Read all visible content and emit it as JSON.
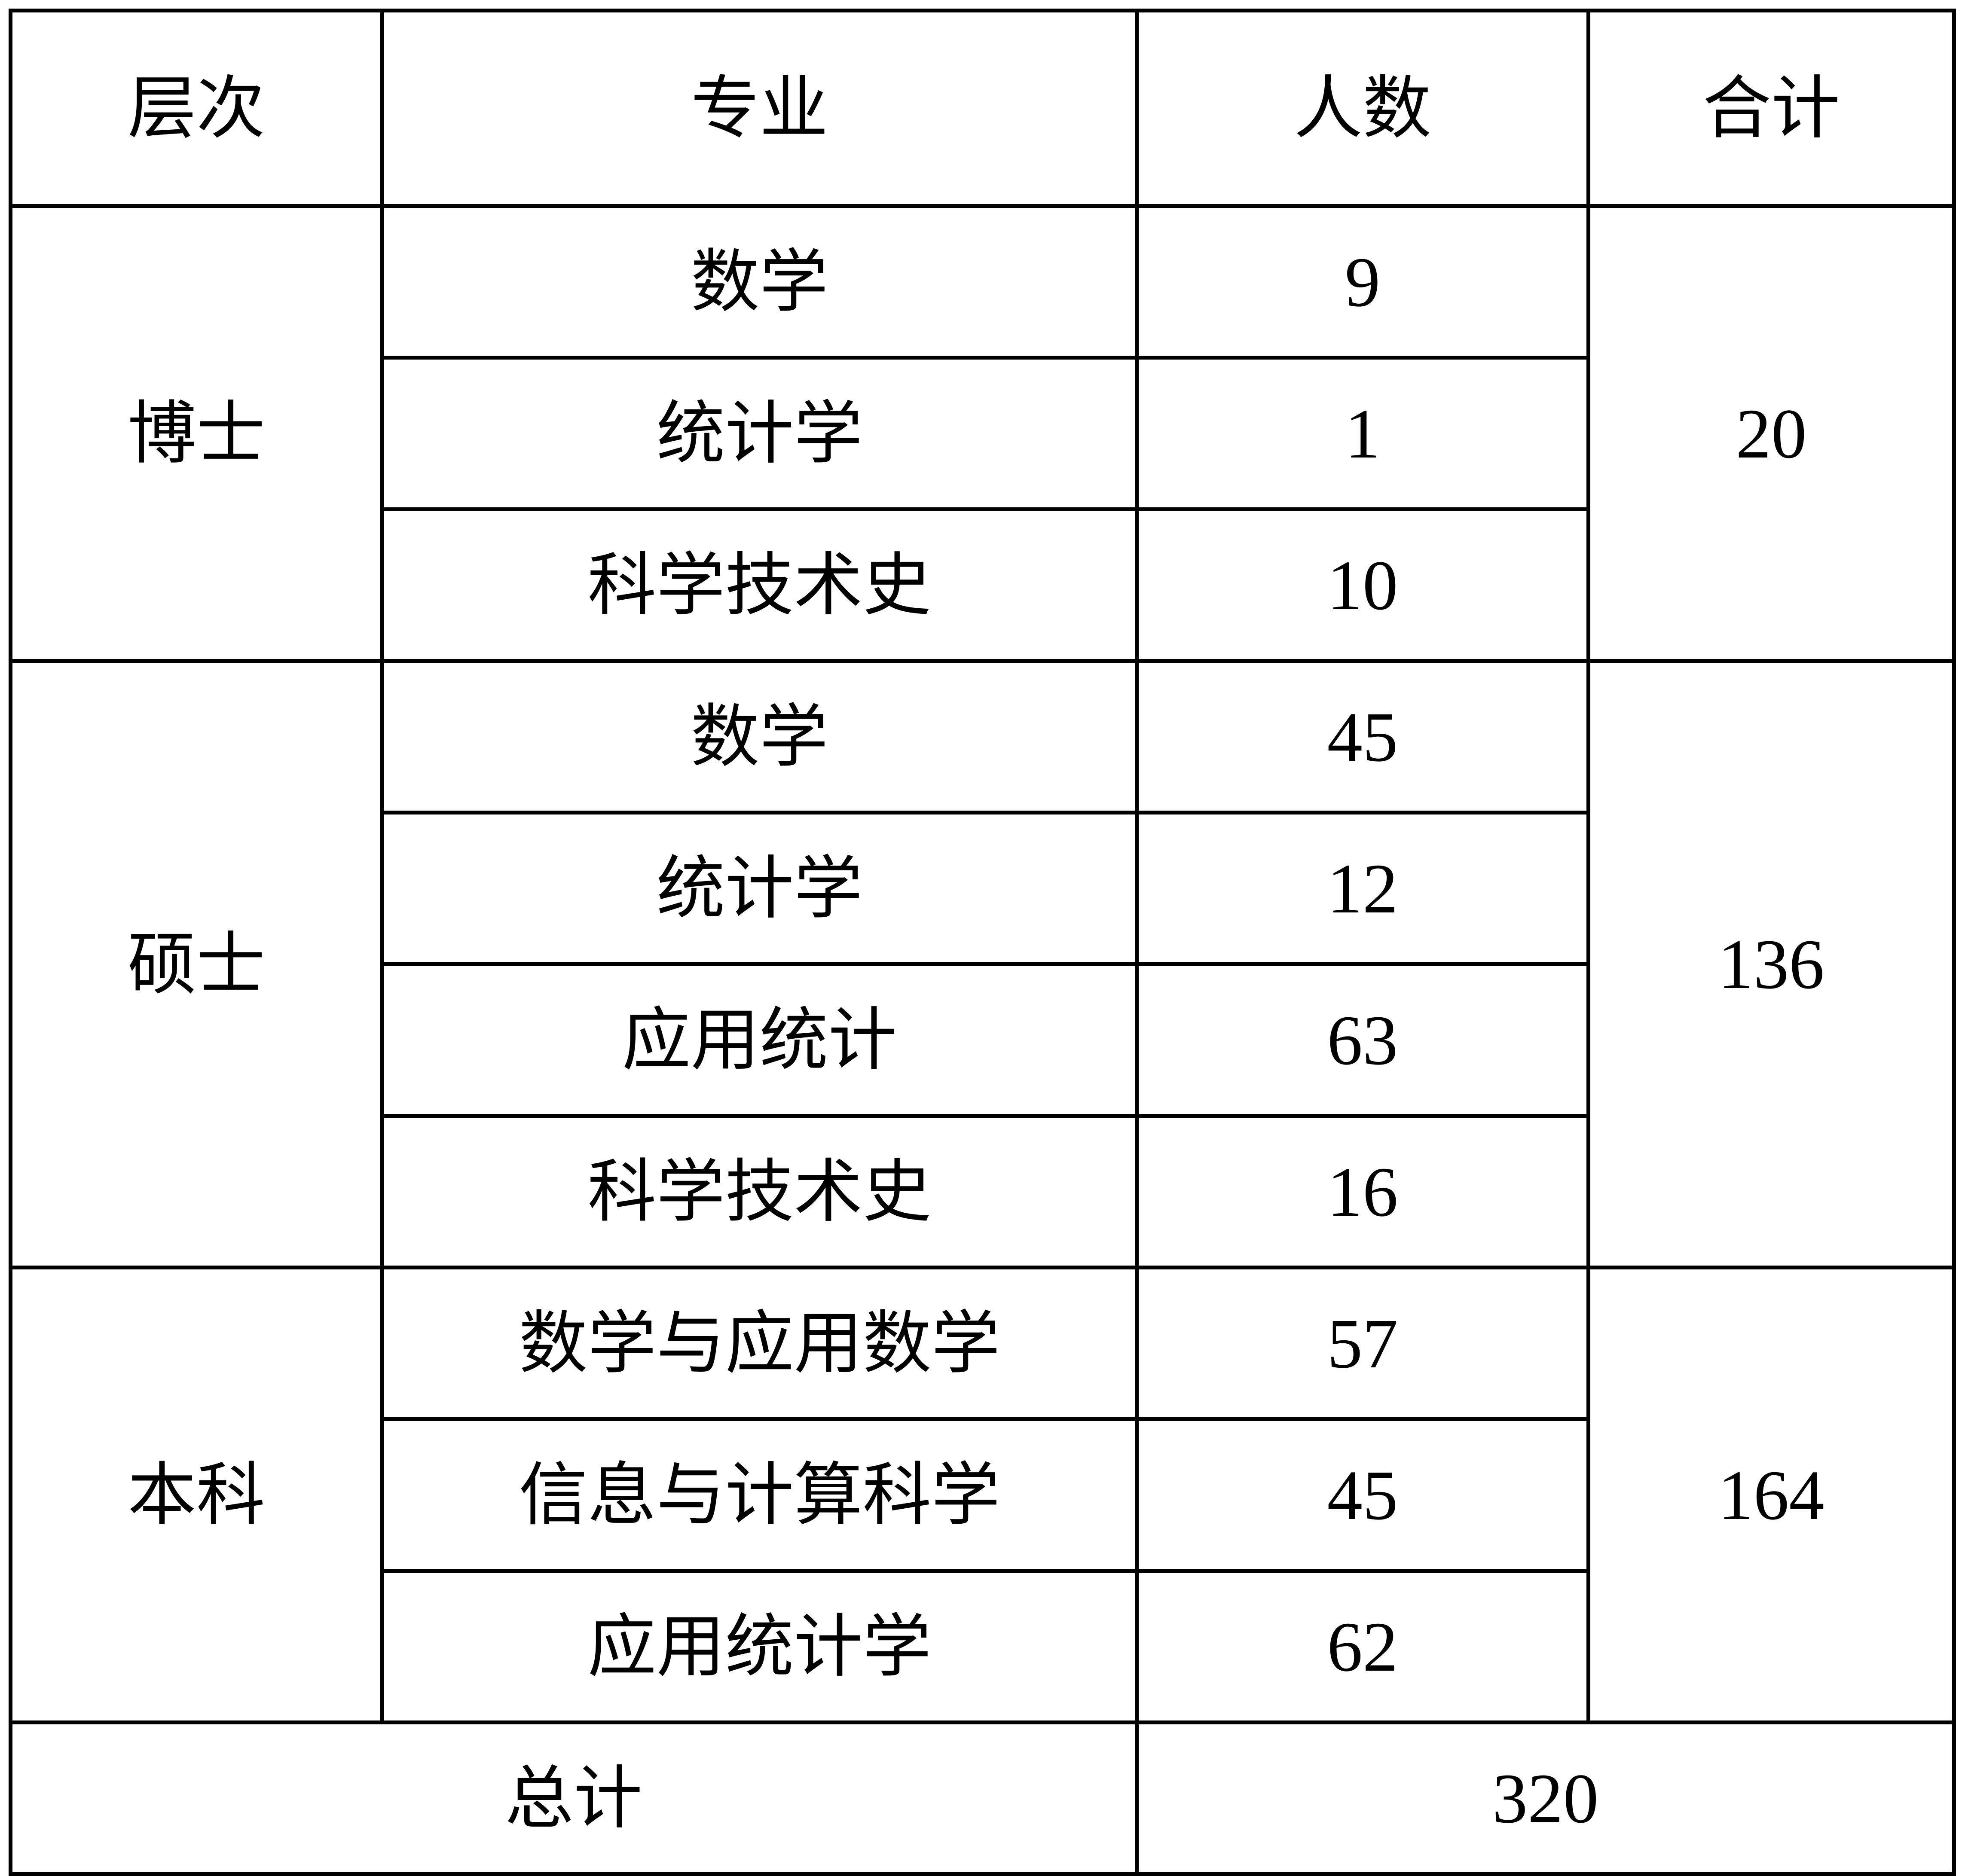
{
  "headers": [
    "层次",
    "专业",
    "人数",
    "合计"
  ],
  "groups": [
    {
      "level": "博士",
      "total": "20",
      "rows": [
        {
          "major": "数学",
          "count": "9"
        },
        {
          "major": "统计学",
          "count": "1"
        },
        {
          "major": "科学技术史",
          "count": "10"
        }
      ]
    },
    {
      "level": "硕士",
      "total": "136",
      "rows": [
        {
          "major": "数学",
          "count": "45"
        },
        {
          "major": "统计学",
          "count": "12"
        },
        {
          "major": "应用统计",
          "count": "63"
        },
        {
          "major": "科学技术史",
          "count": "16"
        }
      ]
    },
    {
      "level": "本科",
      "total": "164",
      "rows": [
        {
          "major": "数学与应用数学",
          "count": "57"
        },
        {
          "major": "信息与计算科学",
          "count": "45"
        },
        {
          "major": "应用统计学",
          "count": "62"
        }
      ]
    }
  ],
  "grand_total": {
    "label": "总计",
    "value": "320"
  }
}
